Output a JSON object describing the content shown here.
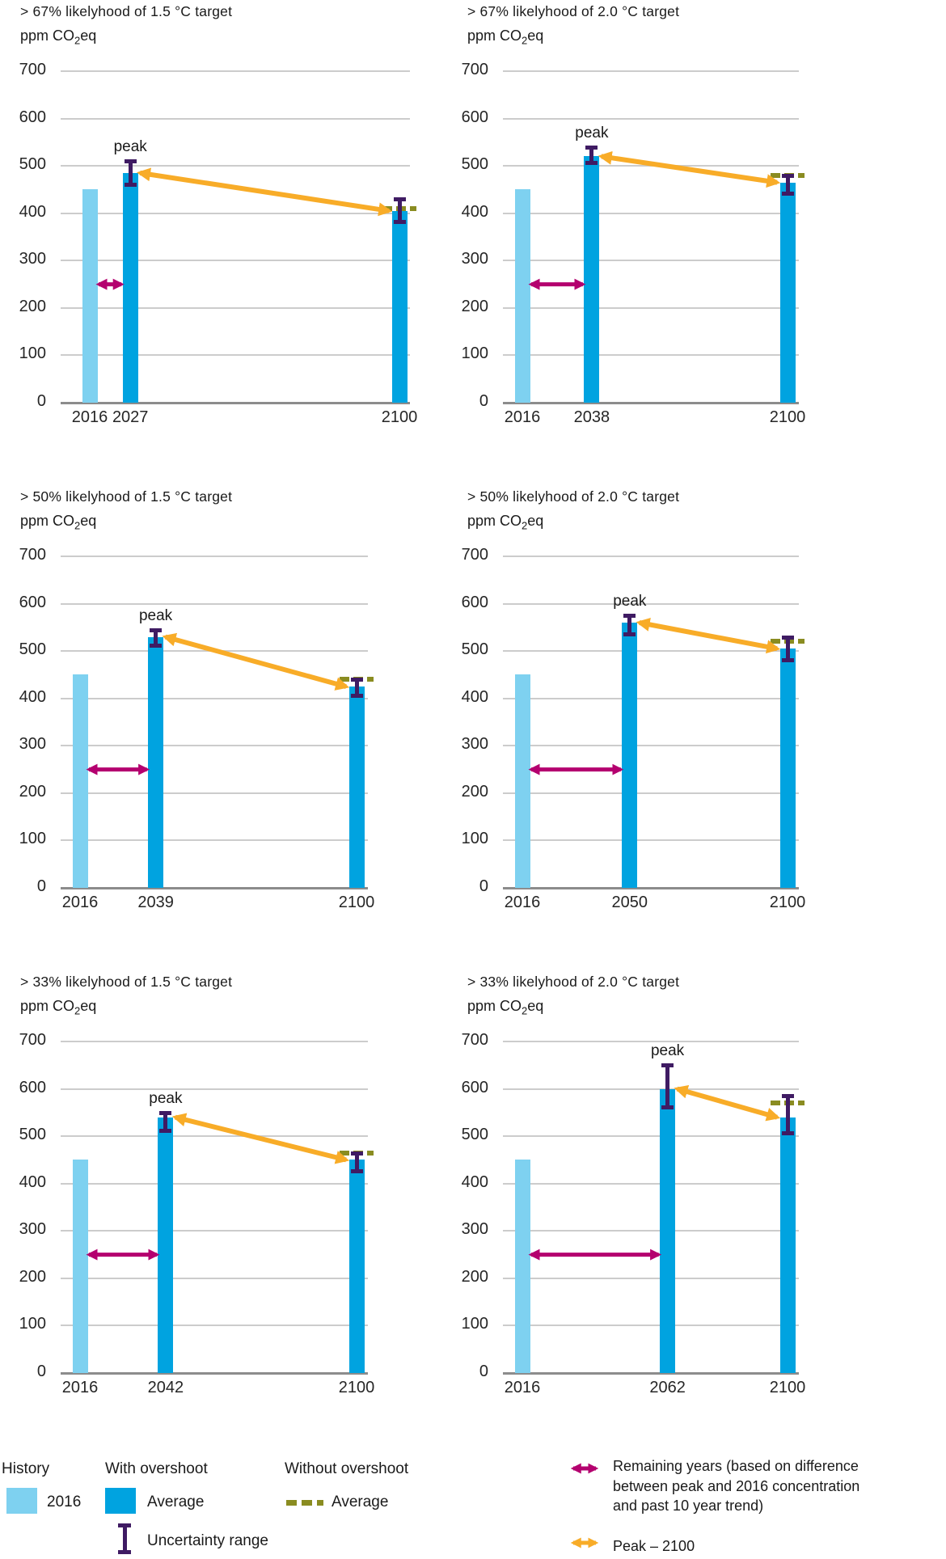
{
  "colors": {
    "history_bar": "#7ed1f0",
    "overshoot_bar": "#00a3e0",
    "uncertainty": "#3f1b63",
    "without_overshoot": "#8a8c21",
    "remaining_years_arrow": "#b4006f",
    "peak_arrow": "#f8ac28",
    "gridline": "#cccccc",
    "axis_line": "#8c8c8c",
    "text": "#1a1a1a"
  },
  "y_axis": {
    "label_pre": "ppm CO",
    "label_sub": "2",
    "label_post": "eq",
    "ticks": [
      700,
      600,
      500,
      400,
      300,
      200,
      100,
      0
    ],
    "max": 700
  },
  "chart_data": [
    {
      "type": "bar",
      "title": "> 67% likelyhood of 1.5 °C target",
      "ylabel": "ppm CO2eq",
      "ylim": [
        0,
        700
      ],
      "categories": [
        "2016",
        "2027",
        "2100"
      ],
      "history_2016": 450,
      "peak": {
        "year": 2027,
        "label": "peak",
        "average": 485,
        "uncertainty_range": [
          460,
          510
        ]
      },
      "end_2100": {
        "average": 405,
        "uncertainty_range": [
          380,
          430
        ],
        "without_overshoot_average": 410
      },
      "remaining_years_arrow_level": 250
    },
    {
      "type": "bar",
      "title": "> 67% likelyhood of 2.0 °C target",
      "ylabel": "ppm CO2eq",
      "ylim": [
        0,
        700
      ],
      "categories": [
        "2016",
        "2038",
        "2100"
      ],
      "history_2016": 450,
      "peak": {
        "year": 2038,
        "label": "peak",
        "average": 520,
        "uncertainty_range": [
          505,
          540
        ]
      },
      "end_2100": {
        "average": 465,
        "uncertainty_range": [
          440,
          480
        ],
        "without_overshoot_average": 480
      },
      "remaining_years_arrow_level": 250
    },
    {
      "type": "bar",
      "title": "> 50% likelyhood of 1.5 °C target",
      "ylabel": "ppm CO2eq",
      "ylim": [
        0,
        700
      ],
      "categories": [
        "2016",
        "2039",
        "2100"
      ],
      "history_2016": 450,
      "peak": {
        "year": 2039,
        "label": "peak",
        "average": 530,
        "uncertainty_range": [
          510,
          545
        ]
      },
      "end_2100": {
        "average": 425,
        "uncertainty_range": [
          405,
          440
        ],
        "without_overshoot_average": 440
      },
      "remaining_years_arrow_level": 250
    },
    {
      "type": "bar",
      "title": "> 50% likelyhood of 2.0 °C target",
      "ylabel": "ppm CO2eq",
      "ylim": [
        0,
        700
      ],
      "categories": [
        "2016",
        "2050",
        "2100"
      ],
      "history_2016": 450,
      "peak": {
        "year": 2050,
        "label": "peak",
        "average": 560,
        "uncertainty_range": [
          535,
          575
        ]
      },
      "end_2100": {
        "average": 505,
        "uncertainty_range": [
          480,
          530
        ],
        "without_overshoot_average": 520
      },
      "remaining_years_arrow_level": 250
    },
    {
      "type": "bar",
      "title": "> 33% likelyhood of 1.5 °C target",
      "ylabel": "ppm CO2eq",
      "ylim": [
        0,
        700
      ],
      "categories": [
        "2016",
        "2042",
        "2100"
      ],
      "history_2016": 450,
      "peak": {
        "year": 2042,
        "label": "peak",
        "average": 540,
        "uncertainty_range": [
          510,
          550
        ]
      },
      "end_2100": {
        "average": 450,
        "uncertainty_range": [
          425,
          465
        ],
        "without_overshoot_average": 465
      },
      "remaining_years_arrow_level": 250
    },
    {
      "type": "bar",
      "title": "> 33% likelyhood of 2.0 °C target",
      "ylabel": "ppm CO2eq",
      "ylim": [
        0,
        700
      ],
      "categories": [
        "2016",
        "2062",
        "2100"
      ],
      "history_2016": 450,
      "peak": {
        "year": 2062,
        "label": "peak",
        "average": 600,
        "uncertainty_range": [
          560,
          650
        ]
      },
      "end_2100": {
        "average": 540,
        "uncertainty_range": [
          505,
          585
        ],
        "without_overshoot_average": 570
      },
      "remaining_years_arrow_level": 250
    }
  ],
  "legend": {
    "history": {
      "heading": "History",
      "item_2016": "2016"
    },
    "with_overshoot": {
      "heading": "With overshoot",
      "average": "Average",
      "uncertainty": "Uncertainty range"
    },
    "without_overshoot": {
      "heading": "Without overshoot",
      "average": "Average"
    },
    "remaining_years": "Remaining years (based on difference between peak and 2016 concentration and past 10 year trend)",
    "peak_2100": "Peak – 2100"
  }
}
